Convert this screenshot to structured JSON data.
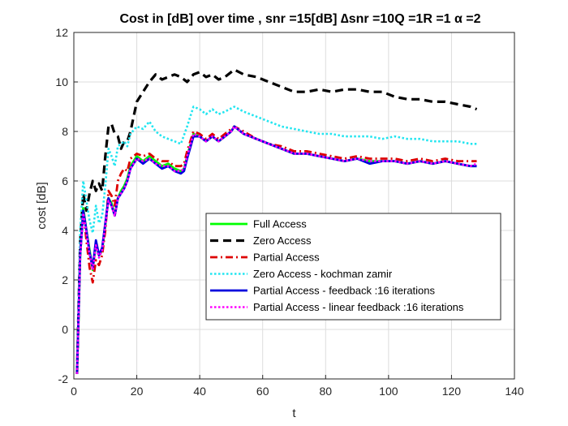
{
  "chart_data": {
    "type": "line",
    "title": "Cost in [dB] over time , snr =15[dB] ∆snr =10Q =1R =1 α =2",
    "xlabel": "t",
    "ylabel": "cost [dB]",
    "xlim": [
      0,
      140
    ],
    "ylim": [
      -2,
      12
    ],
    "xticks": [
      0,
      20,
      40,
      60,
      80,
      100,
      120,
      140
    ],
    "yticks": [
      -2,
      0,
      2,
      4,
      6,
      8,
      10,
      12
    ],
    "grid": true,
    "legend_position": "inside-lower-right",
    "series": [
      {
        "name": "Full Access",
        "color": "#00ff00",
        "style": "solid",
        "x": [
          1,
          2,
          3,
          4,
          5,
          6,
          7,
          8,
          9,
          10,
          11,
          12,
          13,
          14,
          15,
          16,
          17,
          18,
          20,
          22,
          24,
          26,
          28,
          30,
          32,
          34,
          35,
          36,
          38,
          40,
          42,
          44,
          46,
          48,
          50,
          51,
          54,
          58,
          62,
          66,
          70,
          74,
          78,
          82,
          86,
          90,
          94,
          98,
          102,
          106,
          110,
          114,
          118,
          122,
          126,
          128
        ],
        "y": [
          -1.8,
          3.0,
          4.9,
          4.0,
          3.2,
          2.4,
          3.5,
          3.0,
          3.2,
          4.2,
          5.3,
          5.1,
          4.6,
          5.3,
          5.6,
          5.8,
          6.1,
          6.6,
          7.0,
          6.8,
          7.0,
          6.8,
          6.6,
          6.7,
          6.5,
          6.4,
          6.5,
          7.0,
          7.9,
          7.8,
          7.6,
          7.8,
          7.6,
          7.8,
          8.0,
          8.2,
          7.9,
          7.7,
          7.5,
          7.3,
          7.1,
          7.1,
          7.0,
          6.9,
          6.8,
          6.9,
          6.8,
          6.8,
          6.8,
          6.7,
          6.8,
          6.7,
          6.8,
          6.7,
          6.6,
          6.6
        ]
      },
      {
        "name": "Zero Access",
        "color": "#000000",
        "style": "dashed",
        "x": [
          1,
          2,
          3,
          4,
          5,
          6,
          7,
          8,
          9,
          10,
          11,
          12,
          13,
          14,
          15,
          16,
          17,
          18,
          19,
          20,
          22,
          24,
          26,
          28,
          30,
          32,
          34,
          36,
          38,
          40,
          42,
          44,
          46,
          48,
          51,
          54,
          58,
          62,
          66,
          70,
          74,
          78,
          82,
          86,
          90,
          94,
          98,
          102,
          106,
          110,
          114,
          118,
          122,
          126,
          128
        ],
        "y": [
          -1.8,
          3.5,
          5.5,
          4.8,
          5.5,
          6.0,
          5.6,
          5.9,
          5.6,
          7.0,
          8.2,
          8.3,
          7.9,
          7.8,
          7.3,
          7.6,
          7.6,
          8.0,
          8.6,
          9.2,
          9.6,
          10.0,
          10.3,
          10.1,
          10.2,
          10.3,
          10.2,
          10.0,
          10.3,
          10.4,
          10.2,
          10.3,
          10.1,
          10.2,
          10.5,
          10.3,
          10.2,
          10.0,
          9.8,
          9.6,
          9.6,
          9.7,
          9.6,
          9.7,
          9.7,
          9.6,
          9.6,
          9.4,
          9.3,
          9.3,
          9.2,
          9.2,
          9.1,
          9.0,
          8.9
        ]
      },
      {
        "name": "Partial Access",
        "color": "#dd0000",
        "style": "dashdot",
        "x": [
          1,
          2,
          3,
          4,
          5,
          6,
          7,
          8,
          9,
          10,
          11,
          12,
          13,
          14,
          15,
          16,
          17,
          18,
          20,
          22,
          24,
          26,
          28,
          30,
          32,
          34,
          35,
          36,
          38,
          40,
          42,
          44,
          46,
          48,
          51,
          54,
          58,
          62,
          66,
          70,
          74,
          78,
          82,
          86,
          90,
          94,
          98,
          102,
          106,
          110,
          114,
          118,
          122,
          126,
          128
        ],
        "y": [
          -1.8,
          3.0,
          4.8,
          3.6,
          2.5,
          1.9,
          2.8,
          2.6,
          3.0,
          4.0,
          5.6,
          5.4,
          5.0,
          6.0,
          6.3,
          6.5,
          6.4,
          6.9,
          7.1,
          7.0,
          7.1,
          6.9,
          6.8,
          6.8,
          6.6,
          6.6,
          6.7,
          7.2,
          8.0,
          7.9,
          7.7,
          7.9,
          7.7,
          7.9,
          8.2,
          8.0,
          7.7,
          7.5,
          7.4,
          7.2,
          7.2,
          7.1,
          7.0,
          6.9,
          7.0,
          6.9,
          6.9,
          6.9,
          6.8,
          6.9,
          6.8,
          6.9,
          6.8,
          6.8,
          6.8
        ]
      },
      {
        "name": "Zero Access - kochman zamir",
        "color": "#22e5f0",
        "style": "dotted",
        "x": [
          1,
          2,
          3,
          4,
          5,
          6,
          7,
          8,
          9,
          10,
          11,
          12,
          13,
          14,
          15,
          16,
          17,
          18,
          20,
          22,
          24,
          26,
          28,
          30,
          32,
          34,
          36,
          38,
          40,
          42,
          44,
          46,
          48,
          51,
          54,
          58,
          62,
          66,
          70,
          74,
          78,
          82,
          86,
          90,
          94,
          98,
          102,
          106,
          110,
          114,
          118,
          122,
          126,
          128
        ],
        "y": [
          -1.8,
          4.0,
          6.0,
          5.2,
          4.4,
          3.9,
          5.0,
          4.3,
          4.6,
          5.8,
          7.3,
          7.0,
          6.6,
          7.4,
          7.5,
          7.6,
          7.4,
          7.9,
          8.2,
          8.1,
          8.4,
          8.0,
          7.8,
          7.7,
          7.6,
          7.5,
          8.2,
          9.0,
          8.9,
          8.7,
          8.9,
          8.7,
          8.8,
          9.0,
          8.8,
          8.6,
          8.4,
          8.2,
          8.1,
          8.0,
          7.9,
          7.9,
          7.8,
          7.8,
          7.8,
          7.7,
          7.8,
          7.7,
          7.7,
          7.6,
          7.6,
          7.6,
          7.5,
          7.5
        ]
      },
      {
        "name": "Partial Access - feedback :16 iterations",
        "color": "#0000dd",
        "style": "solid",
        "x": [
          1,
          2,
          3,
          4,
          5,
          6,
          7,
          8,
          9,
          10,
          11,
          12,
          13,
          14,
          15,
          16,
          17,
          18,
          20,
          22,
          24,
          26,
          28,
          30,
          32,
          34,
          35,
          36,
          38,
          40,
          42,
          44,
          46,
          48,
          50,
          51,
          54,
          58,
          62,
          66,
          70,
          74,
          78,
          82,
          86,
          90,
          94,
          98,
          102,
          106,
          110,
          114,
          118,
          122,
          126,
          128
        ],
        "y": [
          -1.8,
          3.0,
          4.8,
          4.0,
          3.1,
          2.5,
          3.6,
          3.0,
          3.3,
          4.3,
          5.3,
          5.0,
          4.6,
          5.3,
          5.5,
          5.7,
          6.0,
          6.5,
          6.9,
          6.7,
          6.9,
          6.7,
          6.5,
          6.6,
          6.4,
          6.3,
          6.4,
          6.9,
          7.8,
          7.8,
          7.6,
          7.8,
          7.6,
          7.8,
          8.0,
          8.2,
          7.9,
          7.7,
          7.5,
          7.3,
          7.1,
          7.1,
          7.0,
          6.9,
          6.8,
          6.9,
          6.7,
          6.8,
          6.8,
          6.7,
          6.8,
          6.7,
          6.8,
          6.7,
          6.6,
          6.6
        ]
      },
      {
        "name": "Partial Access - linear feedback :16 iterations",
        "color": "#ff00ff",
        "style": "dotted",
        "x": [
          1,
          2,
          3,
          4,
          5,
          6,
          7,
          8,
          9,
          10,
          11,
          12,
          13,
          14,
          15,
          16,
          17,
          18,
          20,
          22,
          24,
          26,
          28,
          30,
          32,
          34,
          35,
          36,
          38,
          40,
          42,
          44,
          46,
          48,
          50,
          51,
          54,
          58,
          62,
          66,
          70,
          74,
          78,
          82,
          86,
          90,
          94,
          98,
          102,
          106,
          110,
          114,
          118,
          122,
          126,
          128
        ],
        "y": [
          -1.8,
          3.0,
          4.7,
          3.9,
          3.0,
          2.4,
          3.4,
          2.9,
          3.2,
          4.2,
          5.2,
          5.0,
          4.6,
          5.3,
          5.5,
          5.7,
          6.0,
          6.5,
          6.9,
          6.8,
          6.9,
          6.7,
          6.6,
          6.6,
          6.4,
          6.4,
          6.5,
          7.0,
          7.9,
          7.8,
          7.6,
          7.8,
          7.6,
          7.8,
          8.0,
          8.2,
          7.9,
          7.7,
          7.5,
          7.3,
          7.1,
          7.1,
          7.0,
          6.9,
          6.8,
          6.9,
          6.8,
          6.8,
          6.8,
          6.7,
          6.8,
          6.7,
          6.8,
          6.7,
          6.6,
          6.7
        ]
      }
    ]
  }
}
